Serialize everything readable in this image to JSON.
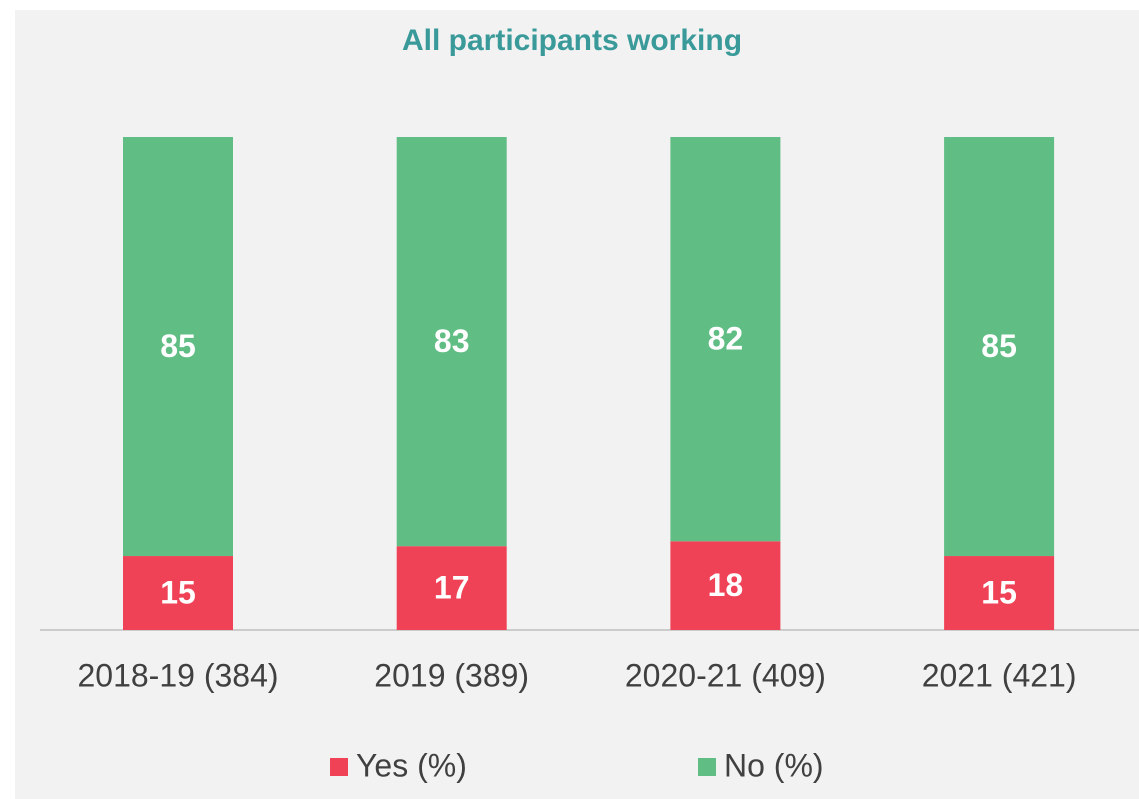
{
  "chart_data": {
    "type": "stacked_bar",
    "title": "All participants working",
    "categories": [
      "2018-19 (384)",
      "2019 (389)",
      "2020-21 (409)",
      "2021 (421)"
    ],
    "series": [
      {
        "name": "Yes (%)",
        "color": "#f04256",
        "values": [
          15,
          17,
          18,
          15
        ]
      },
      {
        "name": "No (%)",
        "color": "#60bd84",
        "values": [
          85,
          83,
          82,
          85
        ]
      }
    ],
    "ylim": [
      0,
      100
    ]
  }
}
